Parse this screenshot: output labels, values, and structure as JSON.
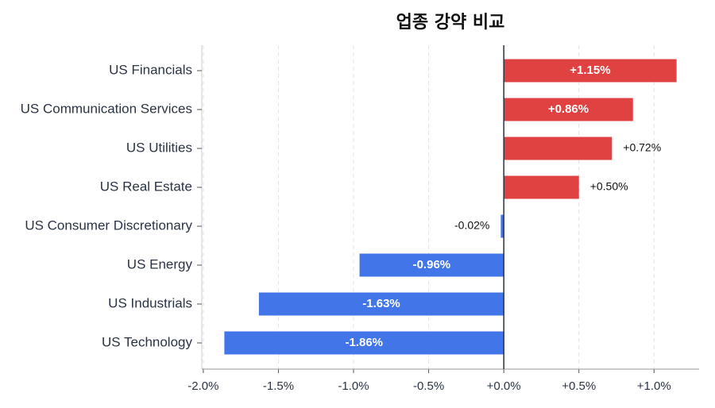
{
  "chart_data": {
    "type": "barh",
    "title": "업종 강약 비교",
    "categories": [
      "US Financials",
      "US Communication Services",
      "US Utilities",
      "US Real Estate",
      "US Consumer Discretionary",
      "US Energy",
      "US Industrials",
      "US Technology"
    ],
    "values": [
      1.15,
      0.86,
      0.72,
      0.5,
      -0.02,
      -0.96,
      -1.63,
      -1.86
    ],
    "value_labels": [
      "+1.15%",
      "+0.86%",
      "+0.72%",
      "+0.50%",
      "-0.02%",
      "-0.96%",
      "-1.63%",
      "-1.86%"
    ],
    "positive_color": "#e04141",
    "negative_color": "#4275e8",
    "xlim": [
      -2.01,
      1.3
    ],
    "xticks": [
      {
        "value": -2.0,
        "label": "-2.0%"
      },
      {
        "value": -1.5,
        "label": "-1.5%"
      },
      {
        "value": -1.0,
        "label": "-1.0%"
      },
      {
        "value": -0.5,
        "label": "-0.5%"
      },
      {
        "value": 0,
        "label": "+0.0%"
      },
      {
        "value": 0.5,
        "label": "+0.5%"
      },
      {
        "value": 1.0,
        "label": "+1.0%"
      }
    ],
    "grid": true
  }
}
